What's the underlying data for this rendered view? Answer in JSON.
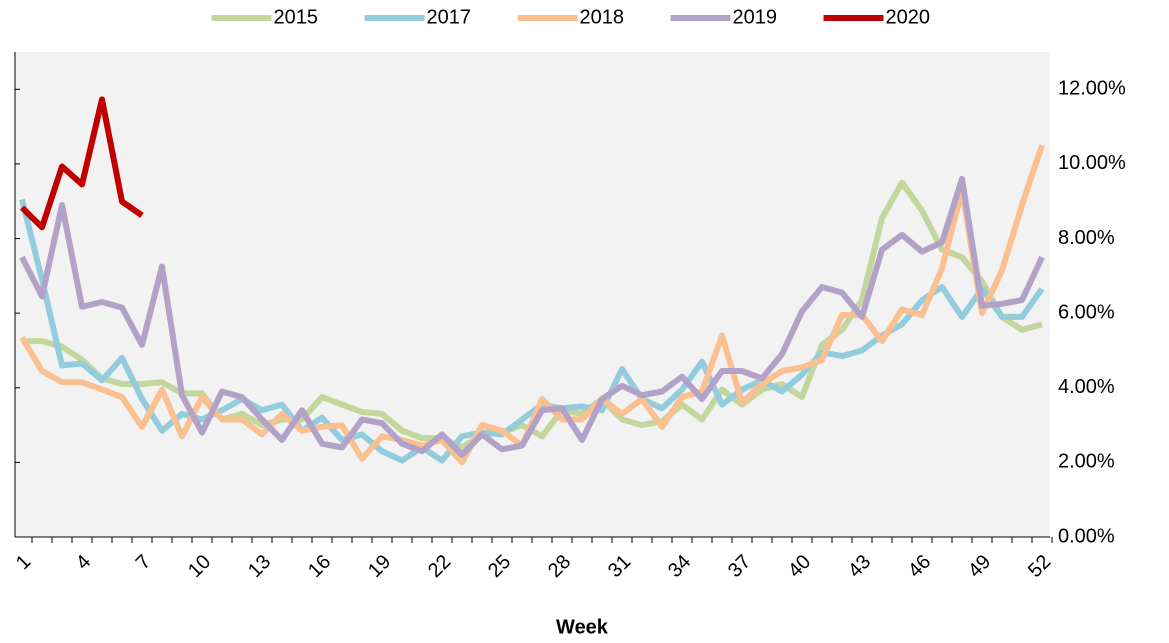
{
  "chart_data": {
    "type": "line",
    "x_title": "Week",
    "legend": "top",
    "categories": [
      1,
      null,
      null,
      4,
      null,
      null,
      7,
      null,
      null,
      10,
      null,
      null,
      13,
      null,
      null,
      16,
      null,
      null,
      19,
      null,
      null,
      22,
      null,
      null,
      25,
      null,
      null,
      28,
      null,
      null,
      31,
      null,
      null,
      34,
      null,
      null,
      37,
      null,
      null,
      40,
      null,
      null,
      43,
      null,
      null,
      46,
      null,
      null,
      49,
      null,
      null,
      52
    ],
    "ylim": [
      0,
      13
    ],
    "yticks": [
      {
        "value": 0,
        "label": "0.00%"
      },
      {
        "value": 2,
        "label": "2.00%"
      },
      {
        "value": 4,
        "label": "4.00%"
      },
      {
        "value": 6,
        "label": "6.00%"
      },
      {
        "value": 8,
        "label": "8.00%"
      },
      {
        "value": 10,
        "label": "10.00%"
      },
      {
        "value": 12,
        "label": "12.00%"
      }
    ],
    "series": [
      {
        "name": "2015",
        "color": "#c3d69b",
        "values": [
          5.25,
          5.25,
          5.1,
          4.75,
          4.25,
          4.1,
          4.1,
          4.15,
          3.85,
          3.85,
          3.15,
          3.3,
          3.0,
          3.15,
          3.15,
          3.75,
          3.55,
          3.35,
          3.3,
          2.85,
          2.65,
          2.65,
          2.4,
          2.75,
          2.8,
          3.0,
          2.7,
          3.4,
          3.3,
          3.7,
          3.15,
          3.0,
          3.1,
          3.55,
          3.15,
          3.95,
          3.55,
          3.95,
          4.1,
          3.75,
          5.15,
          5.55,
          6.35,
          8.55,
          9.5,
          8.75,
          7.7,
          7.5,
          6.85,
          5.9,
          5.55,
          5.7
        ]
      },
      {
        "name": "2017",
        "color": "#93cddd",
        "values": [
          9.05,
          6.9,
          4.6,
          4.65,
          4.2,
          4.8,
          3.7,
          2.85,
          3.3,
          3.15,
          3.4,
          3.7,
          3.4,
          3.55,
          2.85,
          3.2,
          2.6,
          2.75,
          2.3,
          2.05,
          2.4,
          2.05,
          2.7,
          2.8,
          2.75,
          3.15,
          3.55,
          3.45,
          3.5,
          3.4,
          4.5,
          3.7,
          3.45,
          3.95,
          4.7,
          3.55,
          3.95,
          4.2,
          3.9,
          4.35,
          4.95,
          4.85,
          5.0,
          5.4,
          5.7,
          6.35,
          6.7,
          5.9,
          6.65,
          5.9,
          5.9,
          6.65
        ]
      },
      {
        "name": "2018",
        "color": "#fac090",
        "values": [
          5.35,
          4.45,
          4.15,
          4.15,
          3.95,
          3.75,
          2.95,
          3.95,
          2.7,
          3.75,
          3.15,
          3.15,
          2.75,
          3.3,
          2.85,
          2.95,
          3.0,
          2.1,
          2.7,
          2.6,
          2.45,
          2.6,
          2.0,
          3.0,
          2.85,
          2.45,
          3.7,
          3.15,
          3.15,
          3.7,
          3.3,
          3.7,
          2.95,
          3.75,
          3.9,
          5.4,
          3.6,
          4.1,
          4.45,
          4.55,
          4.75,
          5.95,
          5.95,
          5.25,
          6.1,
          5.95,
          7.2,
          9.3,
          6.0,
          7.15,
          8.9,
          10.5
        ]
      },
      {
        "name": "2019",
        "color": "#b3a2c7",
        "values": [
          7.5,
          6.45,
          8.9,
          6.17,
          6.3,
          6.15,
          5.15,
          7.25,
          3.8,
          2.8,
          3.9,
          3.75,
          3.15,
          2.6,
          3.4,
          2.5,
          2.4,
          3.15,
          3.05,
          2.5,
          2.3,
          2.75,
          2.2,
          2.75,
          2.35,
          2.45,
          3.4,
          3.45,
          2.6,
          3.7,
          4.05,
          3.8,
          3.9,
          4.3,
          3.7,
          4.45,
          4.45,
          4.25,
          4.9,
          6.05,
          6.7,
          6.55,
          5.9,
          7.7,
          8.1,
          7.65,
          7.9,
          9.6,
          6.2,
          6.25,
          6.35,
          7.5
        ]
      },
      {
        "name": "2020",
        "color": "#c00000",
        "values": [
          8.83,
          8.3,
          9.93,
          9.45,
          11.73,
          8.99,
          8.62,
          null,
          null,
          null,
          null,
          null,
          null,
          null,
          null,
          null,
          null,
          null,
          null,
          null,
          null,
          null,
          null,
          null,
          null,
          null,
          null,
          null,
          null,
          null,
          null,
          null,
          null,
          null,
          null,
          null,
          null,
          null,
          null,
          null,
          null,
          null,
          null,
          null,
          null,
          null,
          null,
          null,
          null,
          null,
          null,
          null
        ]
      }
    ]
  }
}
